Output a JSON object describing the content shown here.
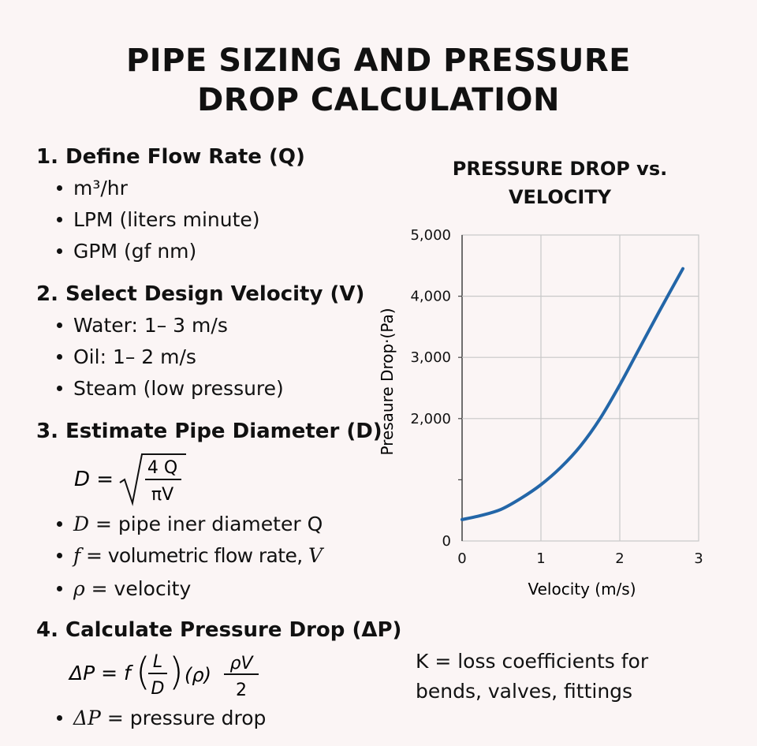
{
  "title": {
    "line1": "PIPE SIZING AND PRESSURE",
    "line2": "DROP CALCULATION"
  },
  "sections": [
    {
      "heading": "1. Define Flow Rate (Q)",
      "bullets": [
        "m³/hr",
        "LPM (liters minute)",
        "GPM (gf nm)"
      ]
    },
    {
      "heading": "2. Select Design Velocity (V)",
      "bullets": [
        "Water: 1– 3 m/s",
        "Oil: 1– 2 m/s",
        "Steam (low pressure)"
      ]
    },
    {
      "heading": "3. Estimate Pipe Diameter (D)",
      "formula": {
        "lhs": "D =",
        "numerator": "4 Q",
        "denominator": "πV"
      },
      "bullets": [
        {
          "sym": "D",
          "text": " = pipe iner diameter  ",
          "tail": "Q"
        },
        {
          "sym": "f",
          "text": " = volumetric flow rate, ",
          "tail": "V"
        },
        {
          "sym": "ρ",
          "text": " = velocity",
          "tail": ""
        }
      ]
    },
    {
      "heading": "4. Calculate Pressure Drop (ΔP)",
      "formula": {
        "lhs": "ΔP = f",
        "frac1_num": "L",
        "frac1_den": "D",
        "mid": "(ρ)",
        "frac2_num": "ρV",
        "frac2_den": "2"
      },
      "bullets": [
        {
          "sym": "ΔP",
          "text": " = pressure drop"
        }
      ],
      "note": {
        "line1": "K = loss coefficients for",
        "line2": "bends, valves, fittings"
      }
    }
  ],
  "chart_data": {
    "type": "line",
    "title": "PRESSURE DROP vs. VELOCITY",
    "title_lines": [
      "PRESSURE DROP vs.",
      "VELOCITY"
    ],
    "xlabel": "Velocity (m/s)",
    "ylabel": "Presaure Drop·(Pa)",
    "xlim": [
      0,
      3
    ],
    "ylim": [
      0,
      5000
    ],
    "x_ticks": [
      "0",
      "1",
      "2",
      "3"
    ],
    "y_ticks": [
      "0",
      "2,000",
      "3,000",
      "4,000",
      "5,000"
    ],
    "y_tick_values": [
      0,
      2000,
      3000,
      4000,
      5000
    ],
    "grid": true,
    "series": [
      {
        "color": "#2366a8",
        "x": [
          0,
          0.25,
          0.5,
          0.75,
          1.0,
          1.25,
          1.5,
          1.75,
          2.0,
          2.25,
          2.5,
          2.8
        ],
        "y": [
          350,
          420,
          520,
          700,
          920,
          1200,
          1550,
          2000,
          2550,
          3150,
          3750,
          4450
        ]
      }
    ]
  }
}
